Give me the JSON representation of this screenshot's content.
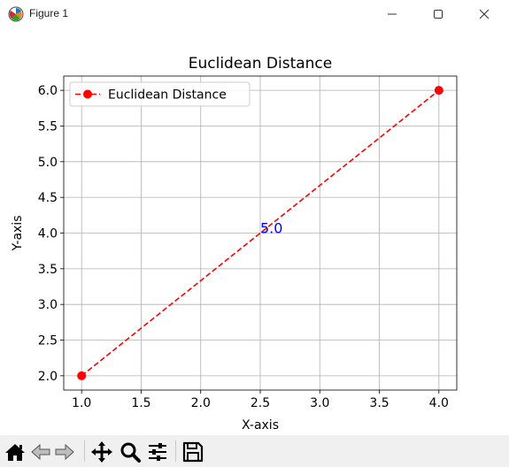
{
  "window": {
    "title": "Figure 1",
    "icon": "matplotlib-icon",
    "controls": [
      "minimize-icon",
      "maximize-icon",
      "close-icon"
    ]
  },
  "toolbar": {
    "buttons": [
      {
        "name": "home",
        "icon": "home-icon"
      },
      {
        "name": "back",
        "icon": "arrow-left-icon"
      },
      {
        "name": "forward",
        "icon": "arrow-right-icon"
      },
      {
        "name": "pan",
        "icon": "move-icon"
      },
      {
        "name": "zoom",
        "icon": "magnifier-icon"
      },
      {
        "name": "configure-subplots",
        "icon": "sliders-icon"
      },
      {
        "name": "save",
        "icon": "floppy-disk-icon"
      }
    ]
  },
  "chart_data": {
    "type": "line",
    "title": "Euclidean Distance",
    "xlabel": "X-axis",
    "ylabel": "Y-axis",
    "xlim": [
      0.85,
      4.15
    ],
    "ylim": [
      1.8,
      6.2
    ],
    "xticks": [
      "1.0",
      "1.5",
      "2.0",
      "2.5",
      "3.0",
      "3.5",
      "4.0"
    ],
    "yticks": [
      "2.0",
      "2.5",
      "3.0",
      "3.5",
      "4.0",
      "4.5",
      "5.0",
      "5.5",
      "6.0"
    ],
    "grid": true,
    "legend_position": "upper-left",
    "series": [
      {
        "name": "Euclidean Distance",
        "x": [
          1.0,
          4.0
        ],
        "y": [
          2.0,
          6.0
        ],
        "color": "#ff0000",
        "linestyle": "dashed",
        "marker": "circle"
      }
    ],
    "annotations": [
      {
        "text": "5.0",
        "x": 2.5,
        "y": 4.0,
        "color": "#0000ff"
      }
    ]
  }
}
